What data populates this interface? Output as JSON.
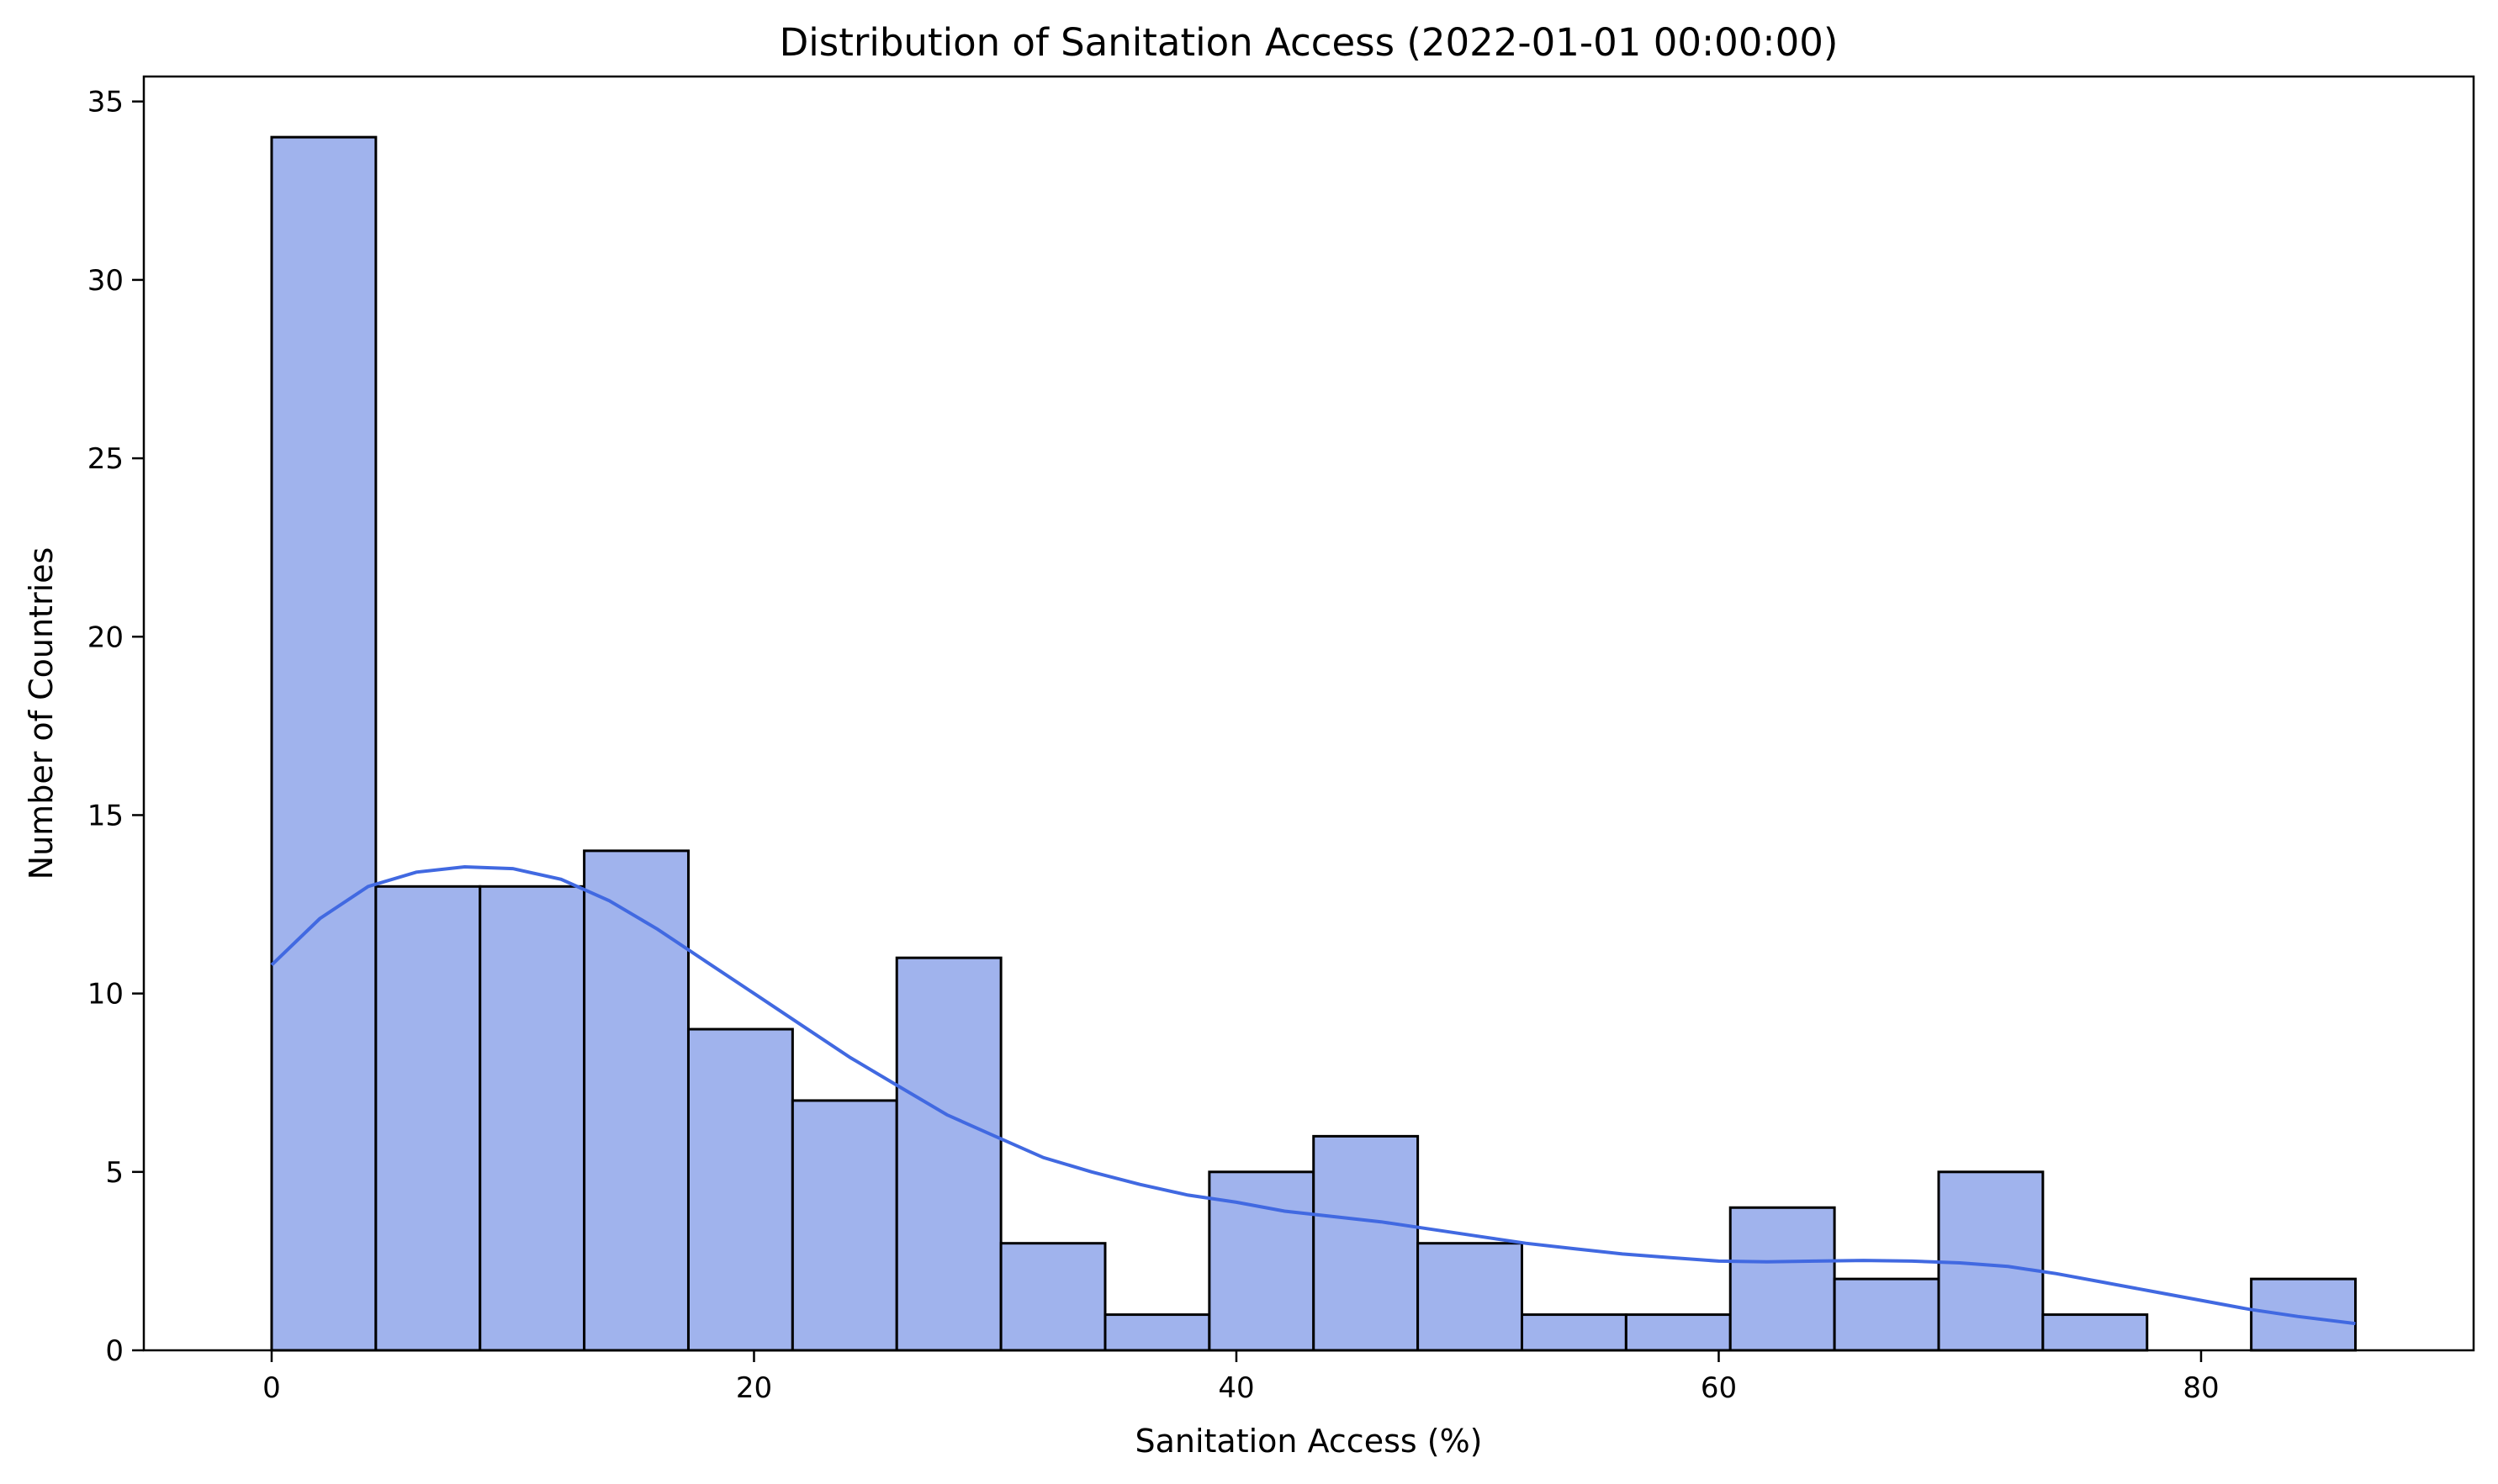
{
  "chart_data": {
    "type": "bar",
    "subtype": "histogram-with-kde",
    "title": "Distribution of Sanitation Access (2022-01-01 00:00:00)",
    "xlabel": "Sanitation Access (%)",
    "ylabel": "Number of Countries",
    "xlim": [
      -5.3,
      91.3
    ],
    "ylim": [
      0,
      35.7
    ],
    "xticks": [
      0,
      20,
      40,
      60,
      80
    ],
    "yticks": [
      0,
      5,
      10,
      15,
      20,
      25,
      30,
      35
    ],
    "grid": false,
    "bin_edges": [
      0,
      4.32,
      8.64,
      12.96,
      17.28,
      21.6,
      25.92,
      30.24,
      34.56,
      38.88,
      43.2,
      47.52,
      51.84,
      56.16,
      60.48,
      64.8,
      69.12,
      73.44,
      77.76,
      82.08,
      86.4
    ],
    "counts": [
      34,
      13,
      13,
      14,
      9,
      7,
      11,
      3,
      1,
      5,
      6,
      3,
      1,
      1,
      4,
      2,
      5,
      1,
      0,
      2
    ],
    "bar_color": "#a0b3ed",
    "edge_color": "#000000",
    "kde": {
      "color": "#4169e1",
      "x": [
        0,
        2,
        4,
        6,
        8,
        10,
        12,
        14,
        16,
        18,
        20,
        22,
        24,
        26,
        28,
        30,
        32,
        34,
        36,
        38,
        40,
        42,
        44,
        46,
        48,
        50,
        52,
        54,
        56,
        58,
        60,
        62,
        64,
        66,
        68,
        70,
        72,
        74,
        76,
        78,
        80,
        82,
        84,
        86.4
      ],
      "y": [
        10.8,
        12.1,
        13.0,
        13.4,
        13.55,
        13.5,
        13.2,
        12.6,
        11.8,
        10.9,
        10.0,
        9.1,
        8.2,
        7.4,
        6.6,
        6.0,
        5.4,
        5.0,
        4.65,
        4.35,
        4.15,
        3.9,
        3.75,
        3.6,
        3.4,
        3.2,
        3.0,
        2.85,
        2.7,
        2.6,
        2.5,
        2.48,
        2.5,
        2.52,
        2.5,
        2.45,
        2.35,
        2.15,
        1.9,
        1.65,
        1.4,
        1.15,
        0.95,
        0.75
      ]
    }
  }
}
